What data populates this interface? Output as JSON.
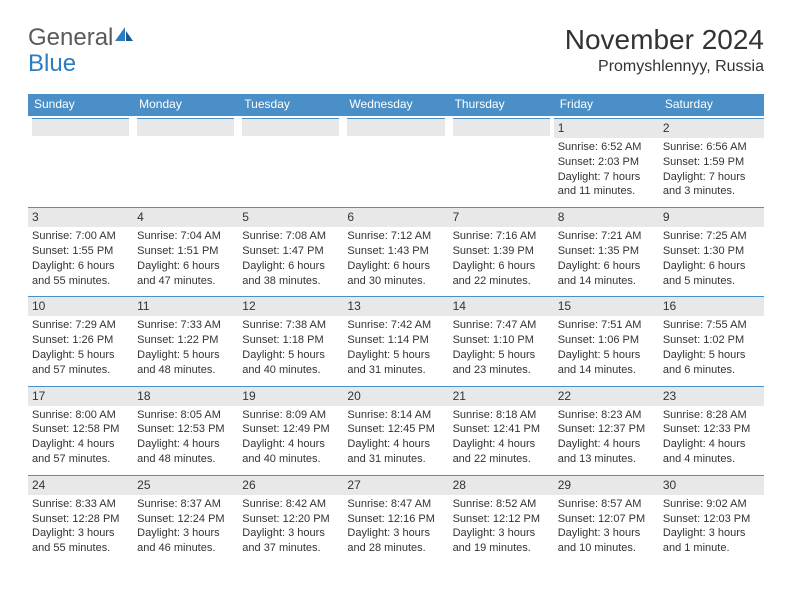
{
  "logo": {
    "text1": "General",
    "text2": "Blue"
  },
  "title": "November 2024",
  "location": "Promyshlennyy, Russia",
  "colors": {
    "header_bg": "#4a8fc7",
    "header_text": "#ffffff",
    "daynum_bg": "#e8e8e8",
    "border": "#4a8fc7",
    "text": "#333333",
    "logo_gray": "#5a5a5a",
    "logo_blue": "#2d7cc0"
  },
  "dayHeaders": [
    "Sunday",
    "Monday",
    "Tuesday",
    "Wednesday",
    "Thursday",
    "Friday",
    "Saturday"
  ],
  "weeks": [
    [
      {
        "empty": true
      },
      {
        "empty": true
      },
      {
        "empty": true
      },
      {
        "empty": true
      },
      {
        "empty": true
      },
      {
        "num": "1",
        "sunrise": "Sunrise: 6:52 AM",
        "sunset": "Sunset: 2:03 PM",
        "daylight": "Daylight: 7 hours and 11 minutes."
      },
      {
        "num": "2",
        "sunrise": "Sunrise: 6:56 AM",
        "sunset": "Sunset: 1:59 PM",
        "daylight": "Daylight: 7 hours and 3 minutes."
      }
    ],
    [
      {
        "num": "3",
        "sunrise": "Sunrise: 7:00 AM",
        "sunset": "Sunset: 1:55 PM",
        "daylight": "Daylight: 6 hours and 55 minutes."
      },
      {
        "num": "4",
        "sunrise": "Sunrise: 7:04 AM",
        "sunset": "Sunset: 1:51 PM",
        "daylight": "Daylight: 6 hours and 47 minutes."
      },
      {
        "num": "5",
        "sunrise": "Sunrise: 7:08 AM",
        "sunset": "Sunset: 1:47 PM",
        "daylight": "Daylight: 6 hours and 38 minutes."
      },
      {
        "num": "6",
        "sunrise": "Sunrise: 7:12 AM",
        "sunset": "Sunset: 1:43 PM",
        "daylight": "Daylight: 6 hours and 30 minutes."
      },
      {
        "num": "7",
        "sunrise": "Sunrise: 7:16 AM",
        "sunset": "Sunset: 1:39 PM",
        "daylight": "Daylight: 6 hours and 22 minutes."
      },
      {
        "num": "8",
        "sunrise": "Sunrise: 7:21 AM",
        "sunset": "Sunset: 1:35 PM",
        "daylight": "Daylight: 6 hours and 14 minutes."
      },
      {
        "num": "9",
        "sunrise": "Sunrise: 7:25 AM",
        "sunset": "Sunset: 1:30 PM",
        "daylight": "Daylight: 6 hours and 5 minutes."
      }
    ],
    [
      {
        "num": "10",
        "sunrise": "Sunrise: 7:29 AM",
        "sunset": "Sunset: 1:26 PM",
        "daylight": "Daylight: 5 hours and 57 minutes."
      },
      {
        "num": "11",
        "sunrise": "Sunrise: 7:33 AM",
        "sunset": "Sunset: 1:22 PM",
        "daylight": "Daylight: 5 hours and 48 minutes."
      },
      {
        "num": "12",
        "sunrise": "Sunrise: 7:38 AM",
        "sunset": "Sunset: 1:18 PM",
        "daylight": "Daylight: 5 hours and 40 minutes."
      },
      {
        "num": "13",
        "sunrise": "Sunrise: 7:42 AM",
        "sunset": "Sunset: 1:14 PM",
        "daylight": "Daylight: 5 hours and 31 minutes."
      },
      {
        "num": "14",
        "sunrise": "Sunrise: 7:47 AM",
        "sunset": "Sunset: 1:10 PM",
        "daylight": "Daylight: 5 hours and 23 minutes."
      },
      {
        "num": "15",
        "sunrise": "Sunrise: 7:51 AM",
        "sunset": "Sunset: 1:06 PM",
        "daylight": "Daylight: 5 hours and 14 minutes."
      },
      {
        "num": "16",
        "sunrise": "Sunrise: 7:55 AM",
        "sunset": "Sunset: 1:02 PM",
        "daylight": "Daylight: 5 hours and 6 minutes."
      }
    ],
    [
      {
        "num": "17",
        "sunrise": "Sunrise: 8:00 AM",
        "sunset": "Sunset: 12:58 PM",
        "daylight": "Daylight: 4 hours and 57 minutes."
      },
      {
        "num": "18",
        "sunrise": "Sunrise: 8:05 AM",
        "sunset": "Sunset: 12:53 PM",
        "daylight": "Daylight: 4 hours and 48 minutes."
      },
      {
        "num": "19",
        "sunrise": "Sunrise: 8:09 AM",
        "sunset": "Sunset: 12:49 PM",
        "daylight": "Daylight: 4 hours and 40 minutes."
      },
      {
        "num": "20",
        "sunrise": "Sunrise: 8:14 AM",
        "sunset": "Sunset: 12:45 PM",
        "daylight": "Daylight: 4 hours and 31 minutes."
      },
      {
        "num": "21",
        "sunrise": "Sunrise: 8:18 AM",
        "sunset": "Sunset: 12:41 PM",
        "daylight": "Daylight: 4 hours and 22 minutes."
      },
      {
        "num": "22",
        "sunrise": "Sunrise: 8:23 AM",
        "sunset": "Sunset: 12:37 PM",
        "daylight": "Daylight: 4 hours and 13 minutes."
      },
      {
        "num": "23",
        "sunrise": "Sunrise: 8:28 AM",
        "sunset": "Sunset: 12:33 PM",
        "daylight": "Daylight: 4 hours and 4 minutes."
      }
    ],
    [
      {
        "num": "24",
        "sunrise": "Sunrise: 8:33 AM",
        "sunset": "Sunset: 12:28 PM",
        "daylight": "Daylight: 3 hours and 55 minutes."
      },
      {
        "num": "25",
        "sunrise": "Sunrise: 8:37 AM",
        "sunset": "Sunset: 12:24 PM",
        "daylight": "Daylight: 3 hours and 46 minutes."
      },
      {
        "num": "26",
        "sunrise": "Sunrise: 8:42 AM",
        "sunset": "Sunset: 12:20 PM",
        "daylight": "Daylight: 3 hours and 37 minutes."
      },
      {
        "num": "27",
        "sunrise": "Sunrise: 8:47 AM",
        "sunset": "Sunset: 12:16 PM",
        "daylight": "Daylight: 3 hours and 28 minutes."
      },
      {
        "num": "28",
        "sunrise": "Sunrise: 8:52 AM",
        "sunset": "Sunset: 12:12 PM",
        "daylight": "Daylight: 3 hours and 19 minutes."
      },
      {
        "num": "29",
        "sunrise": "Sunrise: 8:57 AM",
        "sunset": "Sunset: 12:07 PM",
        "daylight": "Daylight: 3 hours and 10 minutes."
      },
      {
        "num": "30",
        "sunrise": "Sunrise: 9:02 AM",
        "sunset": "Sunset: 12:03 PM",
        "daylight": "Daylight: 3 hours and 1 minute."
      }
    ]
  ]
}
